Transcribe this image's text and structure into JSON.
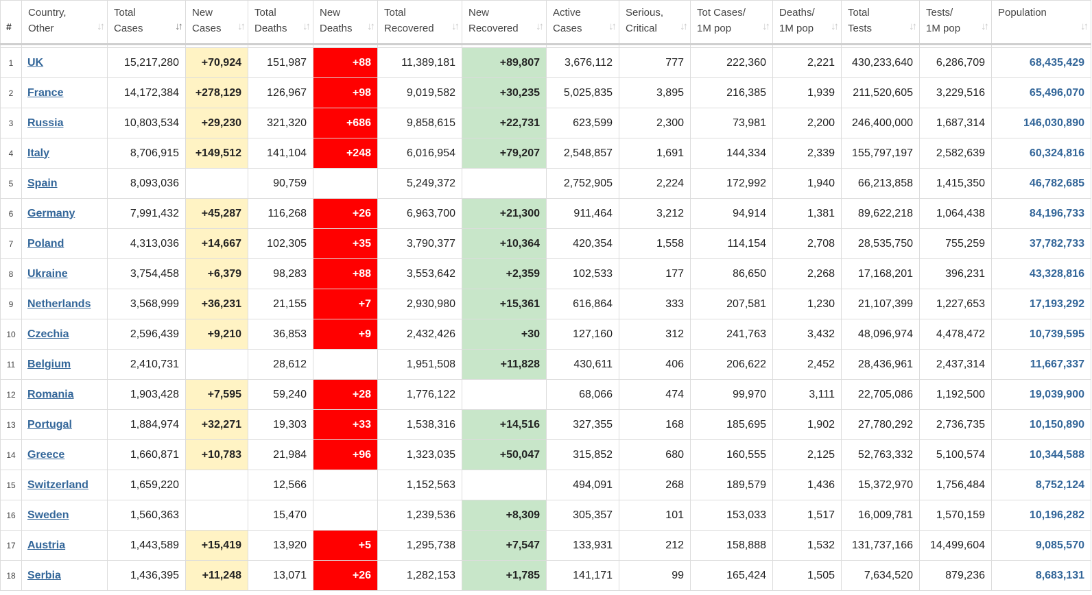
{
  "headers": [
    {
      "key": "rank",
      "line1": "#",
      "line2": ""
    },
    {
      "key": "country",
      "line1": "Country,",
      "line2": "Other"
    },
    {
      "key": "total_cases",
      "line1": "Total",
      "line2": "Cases"
    },
    {
      "key": "new_cases",
      "line1": "New",
      "line2": "Cases"
    },
    {
      "key": "total_deaths",
      "line1": "Total",
      "line2": "Deaths"
    },
    {
      "key": "new_deaths",
      "line1": "New",
      "line2": "Deaths"
    },
    {
      "key": "total_recovered",
      "line1": "Total",
      "line2": "Recovered"
    },
    {
      "key": "new_recovered",
      "line1": "New",
      "line2": "Recovered"
    },
    {
      "key": "active_cases",
      "line1": "Active",
      "line2": "Cases"
    },
    {
      "key": "serious_critical",
      "line1": "Serious,",
      "line2": "Critical"
    },
    {
      "key": "tot_cases_1m",
      "line1": "Tot Cases/",
      "line2": "1M pop"
    },
    {
      "key": "deaths_1m",
      "line1": "Deaths/",
      "line2": "1M pop"
    },
    {
      "key": "total_tests",
      "line1": "Total",
      "line2": "Tests"
    },
    {
      "key": "tests_1m",
      "line1": "Tests/",
      "line2": "1M pop"
    },
    {
      "key": "population",
      "line1": "Population",
      "line2": ""
    }
  ],
  "sort_icon": "sort-arrows-icon",
  "active_sort_column": "total_cases",
  "colors": {
    "new_cases_bg": "#fff3c4",
    "new_deaths_bg": "#ff0000",
    "new_recovered_bg": "#c8e6c9",
    "link": "#336699"
  },
  "rows": [
    {
      "rank": "1",
      "country": "UK",
      "total_cases": "15,217,280",
      "new_cases": "+70,924",
      "total_deaths": "151,987",
      "new_deaths": "+88",
      "total_recovered": "11,389,181",
      "new_recovered": "+89,807",
      "active_cases": "3,676,112",
      "serious_critical": "777",
      "tot_cases_1m": "222,360",
      "deaths_1m": "2,221",
      "total_tests": "430,233,640",
      "tests_1m": "6,286,709",
      "population": "68,435,429"
    },
    {
      "rank": "2",
      "country": "France",
      "total_cases": "14,172,384",
      "new_cases": "+278,129",
      "total_deaths": "126,967",
      "new_deaths": "+98",
      "total_recovered": "9,019,582",
      "new_recovered": "+30,235",
      "active_cases": "5,025,835",
      "serious_critical": "3,895",
      "tot_cases_1m": "216,385",
      "deaths_1m": "1,939",
      "total_tests": "211,520,605",
      "tests_1m": "3,229,516",
      "population": "65,496,070"
    },
    {
      "rank": "3",
      "country": "Russia",
      "total_cases": "10,803,534",
      "new_cases": "+29,230",
      "total_deaths": "321,320",
      "new_deaths": "+686",
      "total_recovered": "9,858,615",
      "new_recovered": "+22,731",
      "active_cases": "623,599",
      "serious_critical": "2,300",
      "tot_cases_1m": "73,981",
      "deaths_1m": "2,200",
      "total_tests": "246,400,000",
      "tests_1m": "1,687,314",
      "population": "146,030,890"
    },
    {
      "rank": "4",
      "country": "Italy",
      "total_cases": "8,706,915",
      "new_cases": "+149,512",
      "total_deaths": "141,104",
      "new_deaths": "+248",
      "total_recovered": "6,016,954",
      "new_recovered": "+79,207",
      "active_cases": "2,548,857",
      "serious_critical": "1,691",
      "tot_cases_1m": "144,334",
      "deaths_1m": "2,339",
      "total_tests": "155,797,197",
      "tests_1m": "2,582,639",
      "population": "60,324,816"
    },
    {
      "rank": "5",
      "country": "Spain",
      "total_cases": "8,093,036",
      "new_cases": "",
      "total_deaths": "90,759",
      "new_deaths": "",
      "total_recovered": "5,249,372",
      "new_recovered": "",
      "active_cases": "2,752,905",
      "serious_critical": "2,224",
      "tot_cases_1m": "172,992",
      "deaths_1m": "1,940",
      "total_tests": "66,213,858",
      "tests_1m": "1,415,350",
      "population": "46,782,685"
    },
    {
      "rank": "6",
      "country": "Germany",
      "total_cases": "7,991,432",
      "new_cases": "+45,287",
      "total_deaths": "116,268",
      "new_deaths": "+26",
      "total_recovered": "6,963,700",
      "new_recovered": "+21,300",
      "active_cases": "911,464",
      "serious_critical": "3,212",
      "tot_cases_1m": "94,914",
      "deaths_1m": "1,381",
      "total_tests": "89,622,218",
      "tests_1m": "1,064,438",
      "population": "84,196,733"
    },
    {
      "rank": "7",
      "country": "Poland",
      "total_cases": "4,313,036",
      "new_cases": "+14,667",
      "total_deaths": "102,305",
      "new_deaths": "+35",
      "total_recovered": "3,790,377",
      "new_recovered": "+10,364",
      "active_cases": "420,354",
      "serious_critical": "1,558",
      "tot_cases_1m": "114,154",
      "deaths_1m": "2,708",
      "total_tests": "28,535,750",
      "tests_1m": "755,259",
      "population": "37,782,733"
    },
    {
      "rank": "8",
      "country": "Ukraine",
      "total_cases": "3,754,458",
      "new_cases": "+6,379",
      "total_deaths": "98,283",
      "new_deaths": "+88",
      "total_recovered": "3,553,642",
      "new_recovered": "+2,359",
      "active_cases": "102,533",
      "serious_critical": "177",
      "tot_cases_1m": "86,650",
      "deaths_1m": "2,268",
      "total_tests": "17,168,201",
      "tests_1m": "396,231",
      "population": "43,328,816"
    },
    {
      "rank": "9",
      "country": "Netherlands",
      "total_cases": "3,568,999",
      "new_cases": "+36,231",
      "total_deaths": "21,155",
      "new_deaths": "+7",
      "total_recovered": "2,930,980",
      "new_recovered": "+15,361",
      "active_cases": "616,864",
      "serious_critical": "333",
      "tot_cases_1m": "207,581",
      "deaths_1m": "1,230",
      "total_tests": "21,107,399",
      "tests_1m": "1,227,653",
      "population": "17,193,292"
    },
    {
      "rank": "10",
      "country": "Czechia",
      "total_cases": "2,596,439",
      "new_cases": "+9,210",
      "total_deaths": "36,853",
      "new_deaths": "+9",
      "total_recovered": "2,432,426",
      "new_recovered": "+30",
      "active_cases": "127,160",
      "serious_critical": "312",
      "tot_cases_1m": "241,763",
      "deaths_1m": "3,432",
      "total_tests": "48,096,974",
      "tests_1m": "4,478,472",
      "population": "10,739,595"
    },
    {
      "rank": "11",
      "country": "Belgium",
      "total_cases": "2,410,731",
      "new_cases": "",
      "total_deaths": "28,612",
      "new_deaths": "",
      "total_recovered": "1,951,508",
      "new_recovered": "+11,828",
      "active_cases": "430,611",
      "serious_critical": "406",
      "tot_cases_1m": "206,622",
      "deaths_1m": "2,452",
      "total_tests": "28,436,961",
      "tests_1m": "2,437,314",
      "population": "11,667,337"
    },
    {
      "rank": "12",
      "country": "Romania",
      "total_cases": "1,903,428",
      "new_cases": "+7,595",
      "total_deaths": "59,240",
      "new_deaths": "+28",
      "total_recovered": "1,776,122",
      "new_recovered": "",
      "active_cases": "68,066",
      "serious_critical": "474",
      "tot_cases_1m": "99,970",
      "deaths_1m": "3,111",
      "total_tests": "22,705,086",
      "tests_1m": "1,192,500",
      "population": "19,039,900"
    },
    {
      "rank": "13",
      "country": "Portugal",
      "total_cases": "1,884,974",
      "new_cases": "+32,271",
      "total_deaths": "19,303",
      "new_deaths": "+33",
      "total_recovered": "1,538,316",
      "new_recovered": "+14,516",
      "active_cases": "327,355",
      "serious_critical": "168",
      "tot_cases_1m": "185,695",
      "deaths_1m": "1,902",
      "total_tests": "27,780,292",
      "tests_1m": "2,736,735",
      "population": "10,150,890"
    },
    {
      "rank": "14",
      "country": "Greece",
      "total_cases": "1,660,871",
      "new_cases": "+10,783",
      "total_deaths": "21,984",
      "new_deaths": "+96",
      "total_recovered": "1,323,035",
      "new_recovered": "+50,047",
      "active_cases": "315,852",
      "serious_critical": "680",
      "tot_cases_1m": "160,555",
      "deaths_1m": "2,125",
      "total_tests": "52,763,332",
      "tests_1m": "5,100,574",
      "population": "10,344,588"
    },
    {
      "rank": "15",
      "country": "Switzerland",
      "total_cases": "1,659,220",
      "new_cases": "",
      "total_deaths": "12,566",
      "new_deaths": "",
      "total_recovered": "1,152,563",
      "new_recovered": "",
      "active_cases": "494,091",
      "serious_critical": "268",
      "tot_cases_1m": "189,579",
      "deaths_1m": "1,436",
      "total_tests": "15,372,970",
      "tests_1m": "1,756,484",
      "population": "8,752,124"
    },
    {
      "rank": "16",
      "country": "Sweden",
      "total_cases": "1,560,363",
      "new_cases": "",
      "total_deaths": "15,470",
      "new_deaths": "",
      "total_recovered": "1,239,536",
      "new_recovered": "+8,309",
      "active_cases": "305,357",
      "serious_critical": "101",
      "tot_cases_1m": "153,033",
      "deaths_1m": "1,517",
      "total_tests": "16,009,781",
      "tests_1m": "1,570,159",
      "population": "10,196,282"
    },
    {
      "rank": "17",
      "country": "Austria",
      "total_cases": "1,443,589",
      "new_cases": "+15,419",
      "total_deaths": "13,920",
      "new_deaths": "+5",
      "total_recovered": "1,295,738",
      "new_recovered": "+7,547",
      "active_cases": "133,931",
      "serious_critical": "212",
      "tot_cases_1m": "158,888",
      "deaths_1m": "1,532",
      "total_tests": "131,737,166",
      "tests_1m": "14,499,604",
      "population": "9,085,570"
    },
    {
      "rank": "18",
      "country": "Serbia",
      "total_cases": "1,436,395",
      "new_cases": "+11,248",
      "total_deaths": "13,071",
      "new_deaths": "+26",
      "total_recovered": "1,282,153",
      "new_recovered": "+1,785",
      "active_cases": "141,171",
      "serious_critical": "99",
      "tot_cases_1m": "165,424",
      "deaths_1m": "1,505",
      "total_tests": "7,634,520",
      "tests_1m": "879,236",
      "population": "8,683,131"
    }
  ]
}
